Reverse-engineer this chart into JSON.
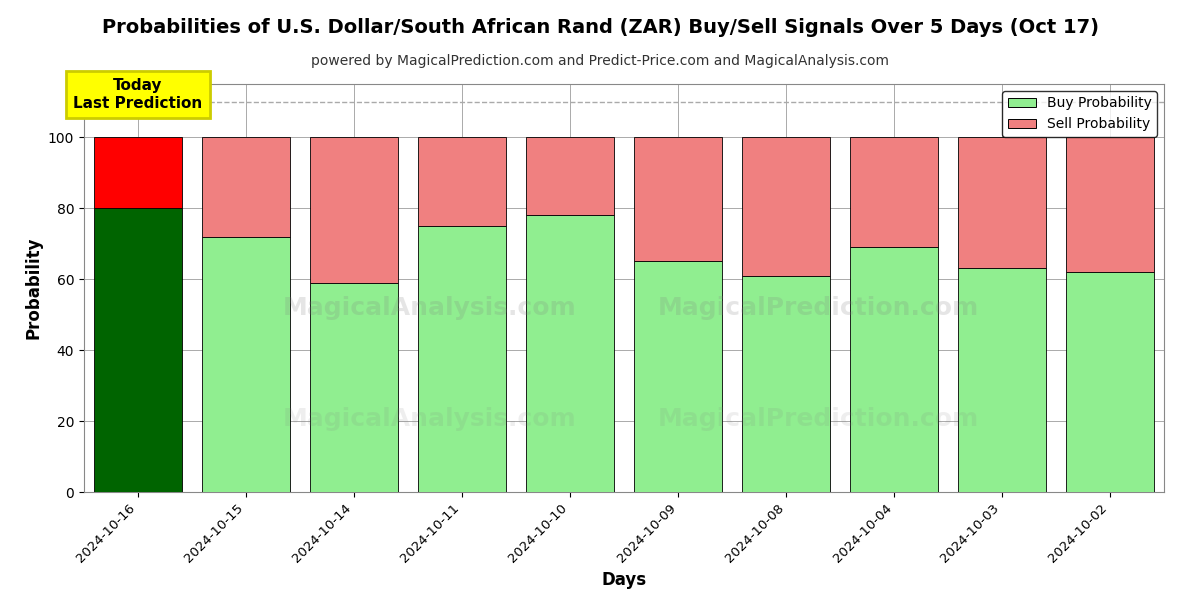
{
  "title": "Probabilities of U.S. Dollar/South African Rand (ZAR) Buy/Sell Signals Over 5 Days (Oct 17)",
  "subtitle": "powered by MagicalPrediction.com and Predict-Price.com and MagicalAnalysis.com",
  "xlabel": "Days",
  "ylabel": "Probability",
  "categories": [
    "2024-10-16",
    "2024-10-15",
    "2024-10-14",
    "2024-10-11",
    "2024-10-10",
    "2024-10-09",
    "2024-10-08",
    "2024-10-04",
    "2024-10-03",
    "2024-10-02"
  ],
  "buy_values": [
    80,
    72,
    59,
    75,
    78,
    65,
    61,
    69,
    63,
    62
  ],
  "sell_values": [
    20,
    28,
    41,
    25,
    22,
    35,
    39,
    31,
    37,
    38
  ],
  "today_bar_buy_color": "#006400",
  "today_bar_sell_color": "#ff0000",
  "other_bar_buy_color": "#90EE90",
  "other_bar_sell_color": "#f08080",
  "bar_edge_color": "#000000",
  "legend_buy_color": "#90EE90",
  "legend_sell_color": "#f08080",
  "annotation_text": "Today\nLast Prediction",
  "annotation_bg_color": "#ffff00",
  "annotation_text_color": "#000000",
  "dashed_line_y": 110,
  "ylim": [
    0,
    115
  ],
  "yticks": [
    0,
    20,
    40,
    60,
    80,
    100
  ],
  "grid_color": "#aaaaaa",
  "bg_color": "#ffffff",
  "title_fontsize": 14,
  "subtitle_fontsize": 10,
  "bar_width": 0.82
}
